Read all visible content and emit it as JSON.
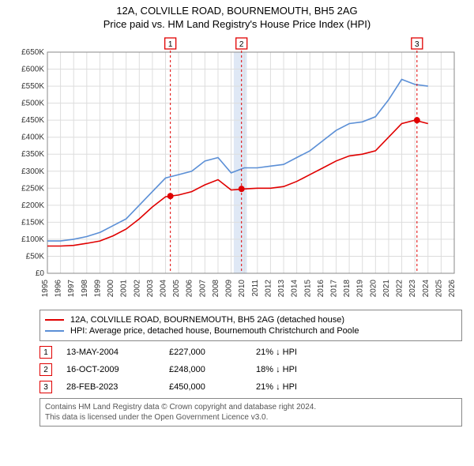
{
  "title_line1": "12A, COLVILLE ROAD, BOURNEMOUTH, BH5 2AG",
  "title_line2": "Price paid vs. HM Land Registry's House Price Index (HPI)",
  "chart": {
    "type": "line",
    "background_color": "#ffffff",
    "plot_border_color": "#888888",
    "grid_color": "#dddddd",
    "x_axis": {
      "label_fontsize": 10,
      "label_color": "#333333",
      "years": [
        1995,
        1996,
        1997,
        1998,
        1999,
        2000,
        2001,
        2002,
        2003,
        2004,
        2005,
        2006,
        2007,
        2008,
        2009,
        2010,
        2011,
        2012,
        2013,
        2014,
        2015,
        2016,
        2017,
        2018,
        2019,
        2020,
        2021,
        2022,
        2023,
        2024,
        2025,
        2026
      ],
      "min": 1995,
      "max": 2026
    },
    "y_axis": {
      "label_fontsize": 10,
      "label_color": "#333333",
      "min": 0,
      "max": 650000,
      "tick_step": 50000,
      "ticks": [
        "£0",
        "£50K",
        "£100K",
        "£150K",
        "£200K",
        "£250K",
        "£300K",
        "£350K",
        "£400K",
        "£450K",
        "£500K",
        "£550K",
        "£600K",
        "£650K"
      ]
    },
    "blue_band": {
      "x_from_year": 2009.2,
      "x_to_year": 2010.2,
      "fill": "#dfe8f5"
    },
    "series": [
      {
        "name": "property",
        "color": "#e00000",
        "width": 1.6,
        "points": [
          [
            1995,
            80000
          ],
          [
            1996,
            80000
          ],
          [
            1997,
            82000
          ],
          [
            1998,
            88000
          ],
          [
            1999,
            95000
          ],
          [
            2000,
            110000
          ],
          [
            2001,
            130000
          ],
          [
            2002,
            160000
          ],
          [
            2003,
            195000
          ],
          [
            2004,
            225000
          ],
          [
            2005,
            230000
          ],
          [
            2006,
            240000
          ],
          [
            2007,
            260000
          ],
          [
            2008,
            275000
          ],
          [
            2009,
            245000
          ],
          [
            2010,
            248000
          ],
          [
            2011,
            250000
          ],
          [
            2012,
            250000
          ],
          [
            2013,
            255000
          ],
          [
            2014,
            270000
          ],
          [
            2015,
            290000
          ],
          [
            2016,
            310000
          ],
          [
            2017,
            330000
          ],
          [
            2018,
            345000
          ],
          [
            2019,
            350000
          ],
          [
            2020,
            360000
          ],
          [
            2021,
            400000
          ],
          [
            2022,
            440000
          ],
          [
            2023,
            450000
          ],
          [
            2024,
            440000
          ]
        ]
      },
      {
        "name": "hpi",
        "color": "#5b8fd6",
        "width": 1.6,
        "points": [
          [
            1995,
            95000
          ],
          [
            1996,
            95000
          ],
          [
            1997,
            100000
          ],
          [
            1998,
            108000
          ],
          [
            1999,
            120000
          ],
          [
            2000,
            140000
          ],
          [
            2001,
            160000
          ],
          [
            2002,
            200000
          ],
          [
            2003,
            240000
          ],
          [
            2004,
            280000
          ],
          [
            2005,
            290000
          ],
          [
            2006,
            300000
          ],
          [
            2007,
            330000
          ],
          [
            2008,
            340000
          ],
          [
            2009,
            295000
          ],
          [
            2010,
            310000
          ],
          [
            2011,
            310000
          ],
          [
            2012,
            315000
          ],
          [
            2013,
            320000
          ],
          [
            2014,
            340000
          ],
          [
            2015,
            360000
          ],
          [
            2016,
            390000
          ],
          [
            2017,
            420000
          ],
          [
            2018,
            440000
          ],
          [
            2019,
            445000
          ],
          [
            2020,
            460000
          ],
          [
            2021,
            510000
          ],
          [
            2022,
            570000
          ],
          [
            2023,
            555000
          ],
          [
            2024,
            550000
          ]
        ]
      }
    ],
    "markers": [
      {
        "badge": "1",
        "year": 2004.37,
        "price": 227000,
        "line_color": "#e00000",
        "dot_color": "#e00000"
      },
      {
        "badge": "2",
        "year": 2009.79,
        "price": 248000,
        "line_color": "#e00000",
        "dot_color": "#e00000"
      },
      {
        "badge": "3",
        "year": 2023.16,
        "price": 450000,
        "line_color": "#e00000",
        "dot_color": "#e00000"
      }
    ]
  },
  "legend": {
    "items": [
      {
        "color": "#e00000",
        "label": "12A, COLVILLE ROAD, BOURNEMOUTH, BH5 2AG (detached house)"
      },
      {
        "color": "#5b8fd6",
        "label": "HPI: Average price, detached house, Bournemouth Christchurch and Poole"
      }
    ]
  },
  "events": [
    {
      "badge": "1",
      "date": "13-MAY-2004",
      "price": "£227,000",
      "delta": "21% ↓ HPI"
    },
    {
      "badge": "2",
      "date": "16-OCT-2009",
      "price": "£248,000",
      "delta": "18% ↓ HPI"
    },
    {
      "badge": "3",
      "date": "28-FEB-2023",
      "price": "£450,000",
      "delta": "21% ↓ HPI"
    }
  ],
  "footer_line1": "Contains HM Land Registry data © Crown copyright and database right 2024.",
  "footer_line2": "This data is licensed under the Open Government Licence v3.0."
}
